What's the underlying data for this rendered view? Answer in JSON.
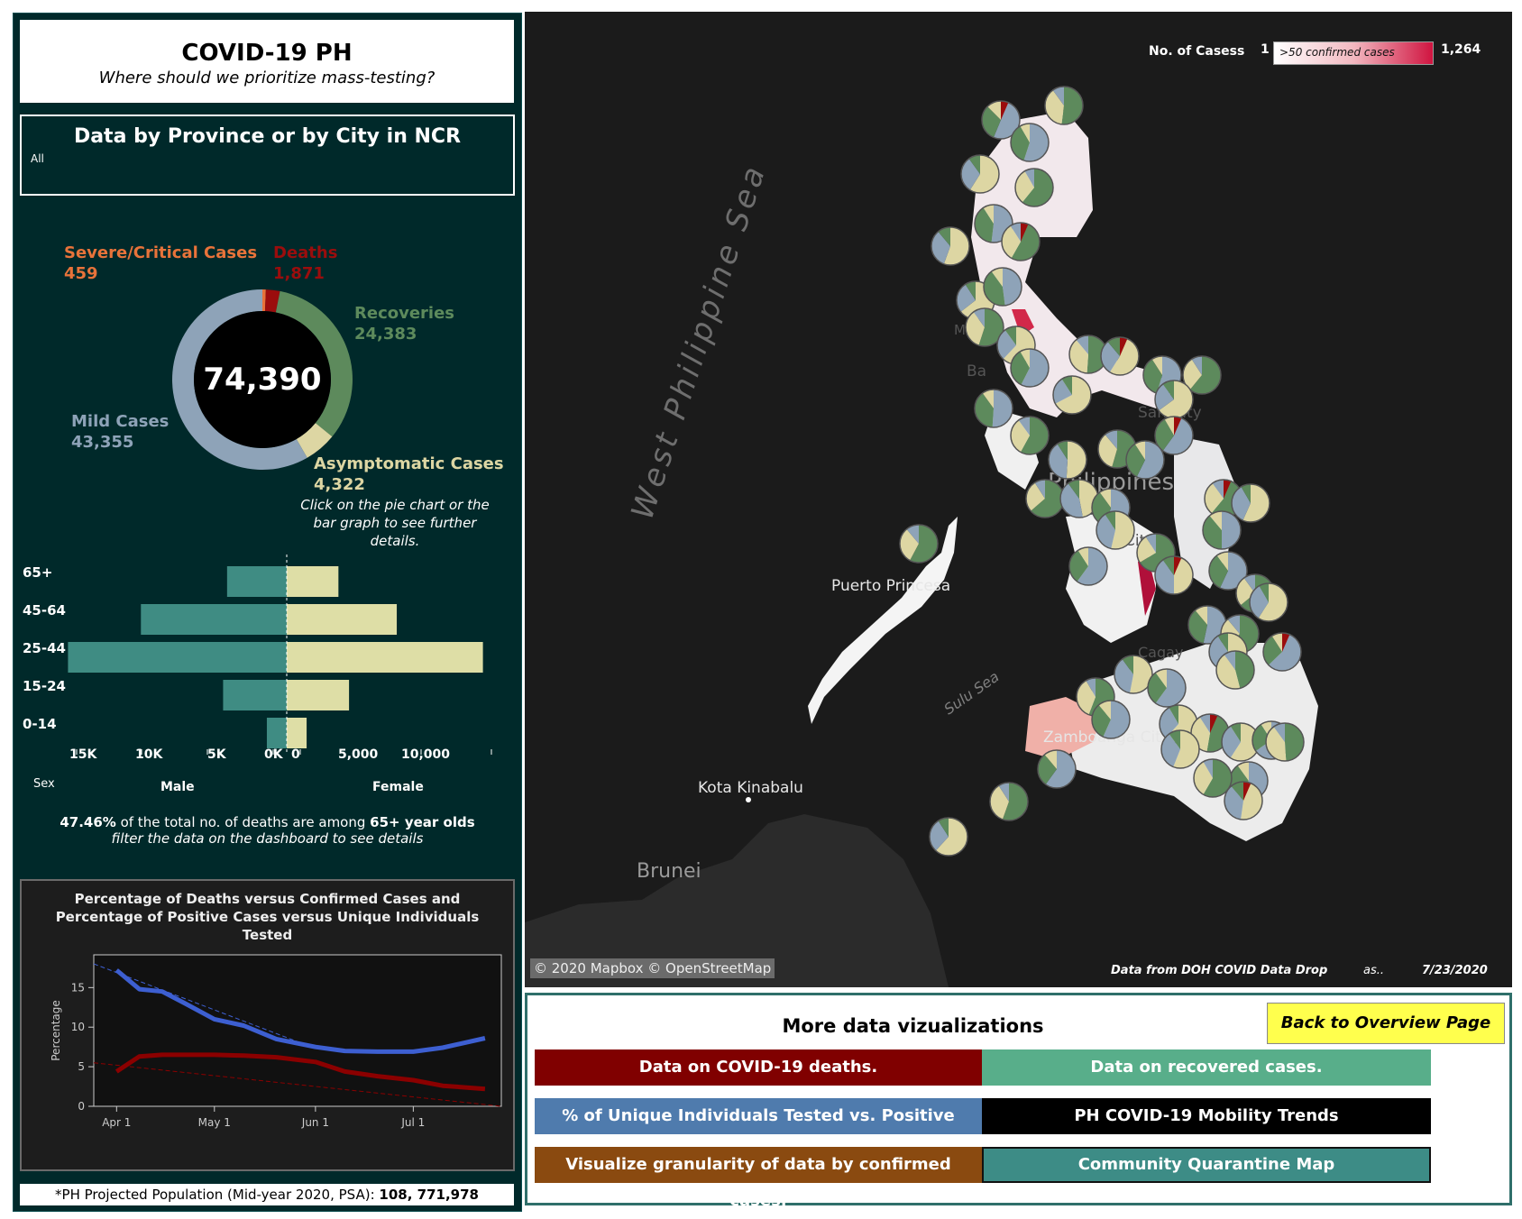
{
  "header": {
    "title": "COVID-19 PH",
    "subtitle": "Where should we prioritize mass-testing?"
  },
  "filter": {
    "title": "Data by Province or by City in NCR",
    "value": "All"
  },
  "donut": {
    "total": "74,390",
    "severe_label": "Severe/Critical Cases",
    "severe_value": "459",
    "deaths_label": "Deaths",
    "deaths_value": "1,871",
    "recoveries_label": "Recoveries",
    "recoveries_value": "24,383",
    "mild_label": "Mild Cases",
    "mild_value": "43,355",
    "asymptomatic_label": "Asymptomatic Cases",
    "asymptomatic_value": "4,322",
    "hint": "Click on the pie chart or the bar graph to see further details.",
    "colors": {
      "severe": "#e8733a",
      "deaths": "#9b0d0d",
      "recoveries": "#5d8a5c",
      "mild": "#8ea3b8",
      "asymptomatic": "#ddd6a3",
      "center": "#000000"
    }
  },
  "age_sex": {
    "age_groups": [
      "65+",
      "45-64",
      "25-44",
      "15-24",
      "0-14"
    ],
    "male_values": [
      4500,
      11000,
      16500,
      4800,
      1500
    ],
    "female_values": [
      3900,
      8300,
      14800,
      4700,
      1500
    ],
    "male_ticks": [
      "15K",
      "10K",
      "5K",
      "0K"
    ],
    "female_ticks": [
      "0",
      "5,000",
      "10,000"
    ],
    "sex_label": "Sex",
    "male_label": "Male",
    "female_label": "Female",
    "colors": {
      "male": "#3f8c83",
      "female": "#dedea6"
    }
  },
  "deaths_note": {
    "pct": "47.46%",
    "text1": " of the total no. of deaths are among ",
    "age": "65+ year olds",
    "line2": "filter the data on the dashboard to see details"
  },
  "line_chart": {
    "title_line1": "Percentage of Deaths versus Confirmed Cases and",
    "title_line2": "Percentage of Positive Cases versus Unique Individuals",
    "title_line3": "Tested",
    "ylabel": "Percentage",
    "y_ticks": [
      "15",
      "10",
      "5",
      "0"
    ],
    "x_ticks": [
      "Apr 1",
      "May 1",
      "Jun 1",
      "Jul 1"
    ]
  },
  "chart_data": {
    "type": "line",
    "ylabel": "Percentage",
    "ylim": [
      0,
      18
    ],
    "x": [
      "2020-03-25",
      "2020-04-01",
      "2020-04-08",
      "2020-04-15",
      "2020-04-22",
      "2020-05-01",
      "2020-05-10",
      "2020-05-20",
      "2020-06-01",
      "2020-06-10",
      "2020-06-20",
      "2020-07-01",
      "2020-07-10",
      "2020-07-23"
    ],
    "series": [
      {
        "values": [
          null,
          17.2,
          14.8,
          14.5,
          13.0,
          11.0,
          10.2,
          8.5,
          7.5,
          7.0,
          6.9,
          6.9,
          7.4,
          8.6
        ],
        "color": "#3d5fd1"
      },
      {
        "values": [
          null,
          4.4,
          6.3,
          6.5,
          6.5,
          6.5,
          6.4,
          6.2,
          5.6,
          4.4,
          3.8,
          3.3,
          2.6,
          2.2
        ],
        "color": "#8b0000"
      }
    ]
  },
  "population": {
    "text": "*PH Projected Population (Mid-year 2020, PSA): ",
    "value": "108, 771,978"
  },
  "map": {
    "legend_title": "No. of Casess",
    "legend_min": "1",
    "legend_max": "1,264",
    "legend_note": ">50 confirmed cases",
    "sea_label": "West Philippine Sea",
    "sulu_label": "Sulu Sea",
    "places": [
      "Puerto Princesa",
      "Zamboanga City",
      "Kota Kinabalu",
      "Brunei",
      "Philippines",
      "City",
      "Ba",
      "M",
      "San City",
      "Cagay"
    ],
    "attribution": "© 2020 Mapbox © OpenStreetMap",
    "source": "Data from DOH COVID Data Drop",
    "as_of": "as..",
    "date": "7/23/2020"
  },
  "nav": {
    "title": "More data vizualizations",
    "back": "Back to Overview Page",
    "buttons": [
      {
        "label": "Data on COVID-19 deaths.",
        "color": "#800000"
      },
      {
        "label": "Data on recovered cases.",
        "color": "#58ae8a"
      },
      {
        "label": "% of Unique Individuals Tested vs. Positive Cases..",
        "color": "#4f7bad"
      },
      {
        "label": "PH COVID-19 Mobility Trends",
        "color": "#000000"
      },
      {
        "label": "Visualize granularity of data by confirmed cases.",
        "color": "#8a4a10"
      },
      {
        "label": "Community Quarantine Map",
        "color": "#3d8c86"
      }
    ]
  }
}
